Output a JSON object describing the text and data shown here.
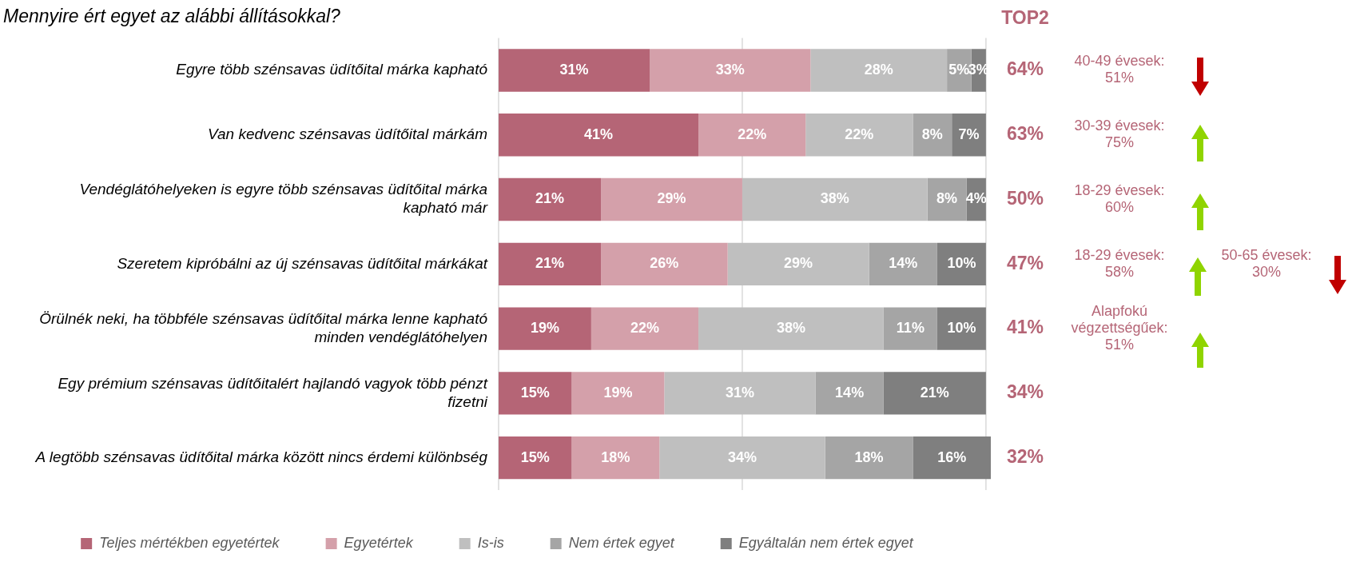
{
  "chart_data": {
    "type": "bar",
    "orientation": "horizontal",
    "stacked": true,
    "title": "Mennyire ért egyet az alábbi állításokkal?",
    "categories": [
      "Egyre több szénsavas üdítőital márka kapható",
      "Van kedvenc szénsavas üdítőital márkám",
      "Vendéglátóhelyeken is egyre több szénsavas üdítőital márka kapható már",
      "Szeretem kipróbálni az új szénsavas üdítőital márkákat",
      "Örülnék neki, ha többféle szénsavas üdítőital márka lenne kapható minden vendéglátóhelyen",
      "Egy prémium szénsavas üdítőitalért hajlandó vagyok több pénzt fizetni",
      "A legtöbb szénsavas üdítőital márka között nincs érdemi különbség"
    ],
    "series": [
      {
        "name": "Teljes mértékben egyetértek",
        "color": "#b56576",
        "values": [
          31,
          41,
          21,
          21,
          19,
          15,
          15
        ],
        "value_labels": [
          "31%",
          "41%",
          "21%",
          "21%",
          "19%",
          "15%",
          "15%"
        ]
      },
      {
        "name": "Egyetértek",
        "color": "#d4a0aa",
        "values": [
          33,
          22,
          29,
          26,
          22,
          19,
          18
        ],
        "value_labels": [
          "33%",
          "22%",
          "29%",
          "26%",
          "22%",
          "19%",
          "18%"
        ]
      },
      {
        "name": "Is-is",
        "color": "#bfbfbf",
        "values": [
          28,
          22,
          38,
          29,
          38,
          31,
          34
        ],
        "value_labels": [
          "28%",
          "22%",
          "38%",
          "29%",
          "38%",
          "31%",
          "34%"
        ]
      },
      {
        "name": "Nem értek egyet",
        "color": "#a5a5a5",
        "values": [
          5,
          8,
          8,
          14,
          11,
          14,
          18
        ],
        "value_labels": [
          "5%",
          "8%",
          "8%",
          "14%",
          "11%",
          "14%",
          "18%"
        ]
      },
      {
        "name": "Egyáltalán nem értek egyet",
        "color": "#7f7f7f",
        "values": [
          3,
          7,
          4,
          10,
          10,
          21,
          16
        ],
        "value_labels": [
          "3%",
          "7%",
          "4%",
          "10%",
          "10%",
          "21%",
          "16%"
        ]
      }
    ],
    "xlim": [
      0,
      101
    ],
    "tick_labels": "y",
    "legend": "bottom",
    "ref_lines": [
      {
        "axis": "x",
        "value": 0,
        "color": "#d9d9d9"
      },
      {
        "axis": "x",
        "value": 50,
        "color": "#d9d9d9"
      },
      {
        "axis": "x",
        "value": 100,
        "color": "#d9d9d9"
      }
    ],
    "annotations": [
      "TOP2",
      "64%",
      "40-49 évesek: 51%",
      "63%",
      "30-39 évesek: 75%",
      "50%",
      "18-29 évesek: 60%",
      "47%",
      "18-29 évesek: 58%",
      "50-65 évesek: 30%",
      "41%",
      "Alapfokú végzettségűek: 51%",
      "34%",
      "32%"
    ]
  }
}
